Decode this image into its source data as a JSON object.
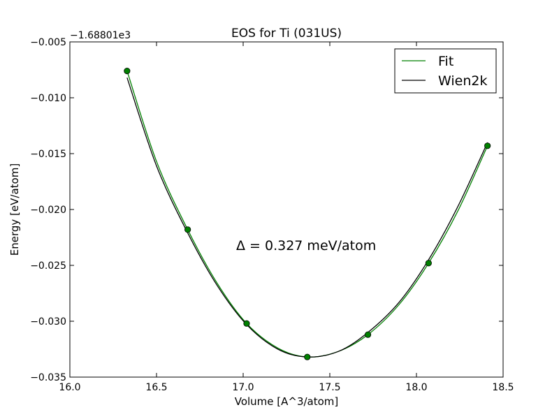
{
  "chart_data": {
    "type": "line",
    "title": "EOS for Ti (031US)",
    "xlabel": "Volume [A^3/atom]",
    "ylabel": "Energy [eV/atom]",
    "offset_label": "−1.68801e3",
    "xlim": [
      16.0,
      18.5
    ],
    "ylim": [
      -0.035,
      -0.005
    ],
    "x_ticks": [
      16.0,
      16.5,
      17.0,
      17.5,
      18.0,
      18.5
    ],
    "x_tick_labels": [
      "16.0",
      "16.5",
      "17.0",
      "17.5",
      "18.0",
      "18.5"
    ],
    "y_ticks": [
      -0.005,
      -0.01,
      -0.015,
      -0.02,
      -0.025,
      -0.03,
      -0.035
    ],
    "y_tick_labels": [
      "−0.005",
      "−0.010",
      "−0.015",
      "−0.020",
      "−0.025",
      "−0.030",
      "−0.035"
    ],
    "grid": false,
    "legend_position": "top-right",
    "annotation": "Δ = 0.327 meV/atom",
    "points": {
      "color": "#008000",
      "x": [
        16.33,
        16.68,
        17.02,
        17.37,
        17.72,
        18.07,
        18.41
      ],
      "y": [
        -0.0076,
        -0.0218,
        -0.0302,
        -0.0332,
        -0.0312,
        -0.0248,
        -0.0143
      ]
    },
    "series": [
      {
        "name": "Fit",
        "color": "#008000",
        "x": [
          16.33,
          16.5,
          16.68,
          16.85,
          17.02,
          17.2,
          17.37,
          17.55,
          17.72,
          17.9,
          18.07,
          18.24,
          18.41
        ],
        "y": [
          -0.0076,
          -0.0157,
          -0.0218,
          -0.0266,
          -0.0302,
          -0.0324,
          -0.0332,
          -0.0327,
          -0.0312,
          -0.0285,
          -0.0248,
          -0.0201,
          -0.0143
        ]
      },
      {
        "name": "Wien2k",
        "color": "#000000",
        "x": [
          16.33,
          16.5,
          16.68,
          16.85,
          17.02,
          17.2,
          17.37,
          17.55,
          17.72,
          17.9,
          18.07,
          18.24,
          18.41
        ],
        "y": [
          -0.0082,
          -0.0161,
          -0.0221,
          -0.0268,
          -0.0303,
          -0.0325,
          -0.0332,
          -0.0327,
          -0.031,
          -0.0283,
          -0.0245,
          -0.0197,
          -0.014
        ]
      }
    ]
  }
}
